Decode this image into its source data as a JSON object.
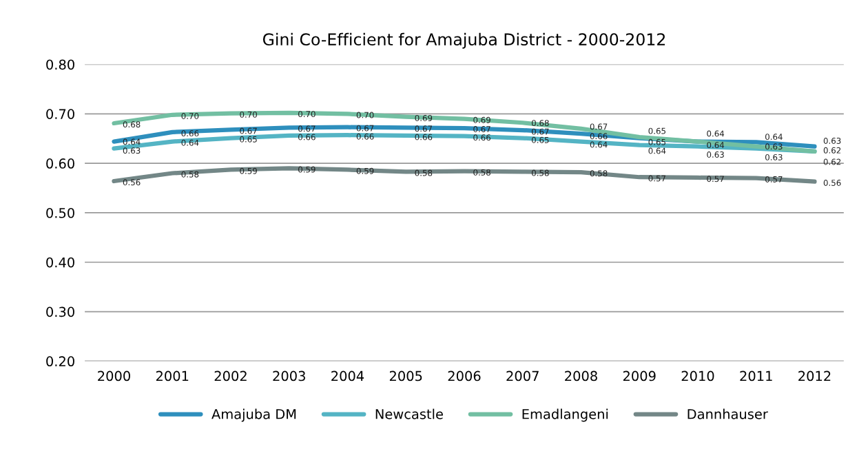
{
  "chart_data": {
    "type": "line",
    "title": "Gini Co-Efficient for Amajuba District - 2000-2012",
    "categories": [
      "2000",
      "2001",
      "2002",
      "2003",
      "2004",
      "2005",
      "2006",
      "2007",
      "2008",
      "2009",
      "2010",
      "2011",
      "2012"
    ],
    "series": [
      {
        "name": "Amajuba DM",
        "color": "#2e8fbd",
        "values": [
          0.644,
          0.663,
          0.668,
          0.672,
          0.673,
          0.672,
          0.671,
          0.667,
          0.66,
          0.651,
          0.644,
          0.643,
          0.634
        ],
        "value_labels": [
          "0.64",
          "0.66",
          "0.67",
          "0.67",
          "0.67",
          "0.67",
          "0.67",
          "0.67",
          "0.66",
          "0.65",
          "0.64",
          "0.64",
          "0.63"
        ]
      },
      {
        "name": "Newcastle",
        "color": "#54b4c4",
        "values": [
          0.63,
          0.644,
          0.651,
          0.656,
          0.657,
          0.656,
          0.655,
          0.651,
          0.644,
          0.637,
          0.634,
          0.63,
          0.624
        ],
        "value_labels": [
          "0.63",
          "0.64",
          "0.65",
          "0.66",
          "0.66",
          "0.66",
          "0.66",
          "0.65",
          "0.64",
          "0.64",
          "0.63",
          "0.63",
          "0.62"
        ]
      },
      {
        "name": "Emadlangeni",
        "color": "#72bfa2",
        "values": [
          0.681,
          0.698,
          0.701,
          0.702,
          0.7,
          0.694,
          0.69,
          0.682,
          0.67,
          0.653,
          0.644,
          0.634,
          0.624
        ],
        "value_labels": [
          "0.68",
          "0.70",
          "0.70",
          "0.70",
          "0.70",
          "0.69",
          "0.69",
          "0.68",
          "0.67",
          "0.65",
          "0.64",
          "0.63",
          "0.62"
        ]
      },
      {
        "name": "Dannhauser",
        "color": "#738787",
        "values": [
          0.564,
          0.58,
          0.587,
          0.59,
          0.587,
          0.583,
          0.584,
          0.583,
          0.582,
          0.572,
          0.571,
          0.57,
          0.563
        ],
        "value_labels": [
          "0.56",
          "0.58",
          "0.59",
          "0.59",
          "0.59",
          "0.58",
          "0.58",
          "0.58",
          "0.58",
          "0.57",
          "0.57",
          "0.57",
          "0.56"
        ]
      }
    ],
    "ylim": [
      0.2,
      0.8
    ],
    "yticks": [
      {
        "value": 0.2,
        "label": "0.20"
      },
      {
        "value": 0.3,
        "label": "0.30"
      },
      {
        "value": 0.4,
        "label": "0.40"
      },
      {
        "value": 0.5,
        "label": "0.50"
      },
      {
        "value": 0.6,
        "label": "0.60"
      },
      {
        "value": 0.7,
        "label": "0.70"
      },
      {
        "value": 0.8,
        "label": "0.80"
      }
    ],
    "grid": "y",
    "legend": "bottom",
    "marker": "none",
    "line_style": "solid"
  }
}
